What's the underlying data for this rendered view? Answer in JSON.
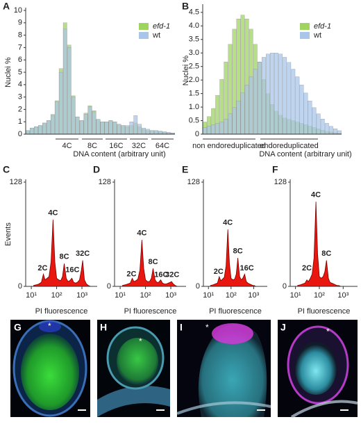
{
  "chart_data": [
    {
      "type": "bar",
      "label": "A",
      "ylabel": "Nuclei %",
      "xlabel": "DNA content (arbitrary unit)",
      "categories": [
        null,
        null,
        null,
        null,
        null,
        null,
        null,
        null,
        null,
        null,
        null,
        null,
        null,
        null,
        null,
        null,
        null,
        null,
        null,
        null,
        null,
        null,
        null,
        null,
        null,
        null,
        null,
        null,
        null,
        null,
        null,
        null,
        null,
        null,
        null,
        null
      ],
      "series": [
        {
          "name": "efd-1",
          "color": "#9fd460",
          "values": [
            0.3,
            0.5,
            0.6,
            0.7,
            0.9,
            1.1,
            1.6,
            2.7,
            5.3,
            9.0,
            7.2,
            3.1,
            1.4,
            1.1,
            1.7,
            2.3,
            1.9,
            1.2,
            1.0,
            1.0,
            1.1,
            1.0,
            0.8,
            0.7,
            0.6,
            0.7,
            0.9,
            0.6,
            0.4,
            0.3,
            0.3,
            0.25,
            0.2,
            0.15,
            0.1,
            0.1
          ]
        },
        {
          "name": "wt",
          "color": "#a9c6e8",
          "values": [
            0.3,
            0.5,
            0.6,
            0.7,
            0.9,
            1.1,
            1.5,
            2.6,
            5.0,
            8.5,
            7.0,
            3.0,
            1.4,
            1.1,
            1.6,
            2.2,
            1.8,
            1.2,
            1.0,
            1.0,
            1.1,
            1.0,
            0.8,
            0.7,
            0.7,
            1.0,
            1.5,
            0.8,
            0.5,
            0.4,
            0.3,
            0.3,
            0.25,
            0.2,
            0.15,
            0.1
          ]
        }
      ],
      "ylim": [
        0,
        10
      ],
      "yticks": [
        0,
        1,
        2,
        3,
        4,
        5,
        6,
        7,
        8,
        9,
        10
      ],
      "legend": "upper right",
      "ranges": [
        "4C",
        "8C",
        "16C",
        "32C",
        "64C"
      ]
    },
    {
      "type": "bar",
      "label": "B",
      "ylabel": "Nuclei %",
      "xlabel": "DNA content (arbitrary unit)",
      "categories": [
        null,
        null,
        null,
        null,
        null,
        null,
        null,
        null,
        null,
        null,
        null,
        null,
        null,
        null,
        null,
        null,
        null,
        null,
        null,
        null,
        null,
        null,
        null,
        null,
        null,
        null,
        null,
        null,
        null,
        null,
        null,
        null,
        null
      ],
      "series": [
        {
          "name": "efd-1",
          "color": "#9fd460",
          "values": [
            0.45,
            0.65,
            0.95,
            1.43,
            2.02,
            2.67,
            3.32,
            3.88,
            4.26,
            4.4,
            4.26,
            3.88,
            3.32,
            2.67,
            2.02,
            1.5,
            1.1,
            0.85,
            0.7,
            0.6,
            0.55,
            0.5,
            0.45,
            0.4,
            0.35,
            0.3,
            0.25,
            0.2,
            0.15,
            0.1,
            0.08,
            0.05,
            0.03
          ]
        },
        {
          "name": "wt",
          "color": "#a9c6e8",
          "values": [
            0.25,
            0.3,
            0.35,
            0.4,
            0.45,
            0.56,
            0.75,
            0.98,
            1.23,
            1.52,
            1.82,
            2.12,
            2.4,
            2.65,
            2.84,
            2.96,
            3.0,
            3.0,
            2.96,
            2.84,
            2.65,
            2.4,
            2.12,
            1.82,
            1.52,
            1.23,
            0.98,
            0.75,
            0.56,
            0.4,
            0.29,
            0.2,
            0.13
          ]
        }
      ],
      "ylim": [
        0,
        4.7
      ],
      "yticks": [
        0,
        0.5,
        {
          "value": 1,
          "label": "1.0"
        },
        1.5,
        {
          "value": 2,
          "label": "2.0"
        },
        2.5,
        {
          "value": 3,
          "label": "3.0"
        },
        3.5,
        {
          "value": 4,
          "label": "4.0"
        },
        4.5
      ],
      "legend": "upper right",
      "ranges": [
        "non endoreduplicated",
        "endoreduplicated"
      ]
    },
    {
      "type": "area",
      "label": "C",
      "ylabel": "Events",
      "xlabel": "PI fluorescence",
      "color": "#e8170f",
      "log_x": true,
      "x": [
        12,
        16,
        20,
        25,
        30,
        35,
        42,
        50,
        60,
        72,
        85,
        100,
        120,
        145,
        170,
        200,
        240,
        280,
        330,
        400,
        470,
        560,
        660,
        800,
        950,
        1070,
        1250,
        1500,
        1800,
        2200
      ],
      "values": [
        1,
        2,
        3,
        5,
        15,
        8,
        10,
        12,
        30,
        82,
        30,
        10,
        8,
        7,
        12,
        28,
        10,
        6,
        7,
        10,
        5,
        4,
        5,
        8,
        20,
        32,
        8,
        3,
        1,
        0
      ],
      "xlim": [
        6,
        4000
      ],
      "xticks": [
        {
          "value": 10,
          "label": "10¹"
        },
        {
          "value": 100,
          "label": "10²"
        },
        {
          "value": 1000,
          "label": "10³"
        }
      ],
      "ylim": [
        0,
        128
      ],
      "yticks": [
        0,
        128
      ],
      "annotations": [
        {
          "text": "2C",
          "x": 28,
          "y": 22
        },
        {
          "text": "4C",
          "x": 72,
          "y": 90
        },
        {
          "text": "8C",
          "x": 200,
          "y": 36
        },
        {
          "text": "16C",
          "x": 420,
          "y": 20
        },
        {
          "text": "32C",
          "x": 1070,
          "y": 40
        }
      ]
    },
    {
      "type": "area",
      "label": "D",
      "xlabel": "PI fluorescence",
      "color": "#e8170f",
      "log_x": true,
      "x": [
        12,
        16,
        20,
        25,
        30,
        35,
        42,
        50,
        60,
        72,
        85,
        100,
        120,
        145,
        170,
        200,
        240,
        280,
        330,
        400,
        470,
        560,
        660,
        800,
        950,
        1070,
        1250,
        1500,
        1800,
        2200
      ],
      "values": [
        1,
        2,
        3,
        4,
        10,
        6,
        7,
        9,
        20,
        57,
        22,
        8,
        6,
        6,
        10,
        22,
        8,
        5,
        5,
        8,
        4,
        3,
        3,
        4,
        5,
        6,
        3,
        1,
        0,
        0
      ],
      "xlim": [
        6,
        4000
      ],
      "xticks": [
        {
          "value": 10,
          "label": "10¹"
        },
        {
          "value": 100,
          "label": "10²"
        },
        {
          "value": 1000,
          "label": "10³"
        }
      ],
      "ylim": [
        0,
        128
      ],
      "yticks": [
        0,
        128
      ],
      "annotations": [
        {
          "text": "2C",
          "x": 28,
          "y": 15
        },
        {
          "text": "4C",
          "x": 72,
          "y": 65
        },
        {
          "text": "8C",
          "x": 200,
          "y": 30
        },
        {
          "text": "16C",
          "x": 420,
          "y": 14
        },
        {
          "text": "32C",
          "x": 1150,
          "y": 14
        }
      ]
    },
    {
      "type": "area",
      "label": "E",
      "xlabel": "PI fluorescence",
      "color": "#e8170f",
      "log_x": true,
      "x": [
        12,
        16,
        20,
        25,
        30,
        35,
        42,
        50,
        60,
        72,
        85,
        100,
        120,
        145,
        170,
        200,
        240,
        280,
        330,
        400,
        470,
        560,
        660,
        800,
        950,
        1070,
        1250,
        1500,
        1800,
        2200
      ],
      "values": [
        1,
        2,
        3,
        4,
        12,
        7,
        9,
        11,
        25,
        70,
        28,
        10,
        8,
        9,
        15,
        35,
        12,
        8,
        10,
        15,
        6,
        4,
        3,
        2,
        1,
        1,
        0,
        0,
        0,
        0
      ],
      "xlim": [
        6,
        4000
      ],
      "xticks": [
        {
          "value": 10,
          "label": "10¹"
        },
        {
          "value": 100,
          "label": "10²"
        },
        {
          "value": 1000,
          "label": "10³"
        }
      ],
      "ylim": [
        0,
        128
      ],
      "yticks": [
        0,
        128
      ],
      "annotations": [
        {
          "text": "2C",
          "x": 28,
          "y": 18
        },
        {
          "text": "4C",
          "x": 72,
          "y": 78
        },
        {
          "text": "8C",
          "x": 200,
          "y": 43
        },
        {
          "text": "16C",
          "x": 500,
          "y": 22
        }
      ]
    },
    {
      "type": "area",
      "label": "F",
      "xlabel": "PI fluorescence",
      "color": "#e8170f",
      "log_x": true,
      "x": [
        12,
        16,
        20,
        25,
        30,
        35,
        42,
        50,
        60,
        72,
        85,
        100,
        120,
        145,
        170,
        200,
        240,
        280,
        330,
        400,
        470,
        560,
        660,
        800,
        950,
        1070,
        1250,
        1500,
        1800,
        2200
      ],
      "values": [
        1,
        2,
        3,
        4,
        8,
        6,
        10,
        15,
        35,
        104,
        40,
        12,
        10,
        12,
        18,
        32,
        10,
        5,
        4,
        3,
        2,
        1,
        1,
        0,
        0,
        0,
        0,
        0,
        0,
        0
      ],
      "xlim": [
        6,
        4000
      ],
      "xticks": [
        {
          "value": 10,
          "label": "10¹"
        },
        {
          "value": 100,
          "label": "10²"
        },
        {
          "value": 1000,
          "label": "10³"
        }
      ],
      "ylim": [
        0,
        128
      ],
      "yticks": [
        0,
        128
      ],
      "annotations": [
        {
          "text": "2C",
          "x": 30,
          "y": 22
        },
        {
          "text": "4C",
          "x": 72,
          "y": 112
        },
        {
          "text": "8C",
          "x": 200,
          "y": 40
        }
      ]
    }
  ],
  "images": [
    {
      "label": "G",
      "marker": "*"
    },
    {
      "label": "H",
      "marker": "*"
    },
    {
      "label": "I",
      "marker": "*"
    },
    {
      "label": "J",
      "marker": "*"
    }
  ]
}
